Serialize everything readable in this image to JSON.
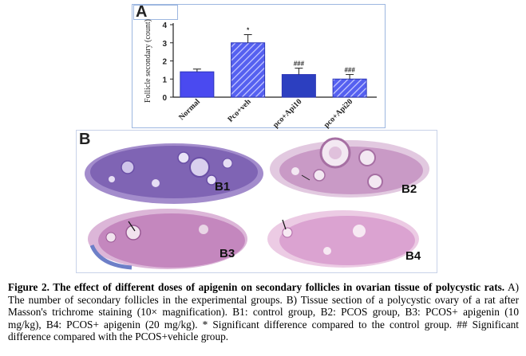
{
  "panel_a": {
    "label": "A",
    "chart_data": {
      "type": "bar",
      "categories": [
        "Normal",
        "Pco+veh",
        "pco+Api10",
        "pco+Api20"
      ],
      "values": [
        1.4,
        3.0,
        1.25,
        1.0
      ],
      "errors": [
        0.15,
        0.45,
        0.35,
        0.25
      ],
      "annotations": [
        "",
        "*",
        "###",
        "###"
      ],
      "ylabel": "Follicle secondary (count)",
      "ylim": [
        0,
        4
      ],
      "yticks": [
        "0",
        "1",
        "2",
        "3",
        "4"
      ],
      "colors": [
        "#4a4af0",
        "#3e49d8",
        "#2c3fc0",
        "#5a5ff0"
      ],
      "patterns": [
        "solid",
        "hatch",
        "solid",
        "hatch"
      ]
    }
  },
  "panel_b": {
    "label": "B",
    "images": [
      {
        "label": "B1",
        "description_color": "#8a6fb8"
      },
      {
        "label": "B2",
        "description_color": "#c7a3c8"
      },
      {
        "label": "B3",
        "description_color": "#c38ac0"
      },
      {
        "label": "B4",
        "description_color": "#d9a2cf"
      }
    ]
  },
  "caption": {
    "bold": "Figure 2. The effect of different doses of apigenin on secondary follicles in ovarian tissue of polycystic rats.",
    "text": " A) The number of secondary follicles in the experimental groups. B) Tissue section of a polycystic ovary of a rat after Masson's trichrome staining (10× magnification). B1: control group, B2: PCOS group, B3: PCOS+ apigenin (10 mg/kg), B4: PCOS+ apigenin (20 mg/kg). * Significant difference compared to the control group. ## Significant difference compared with the PCOS+vehicle group."
  }
}
